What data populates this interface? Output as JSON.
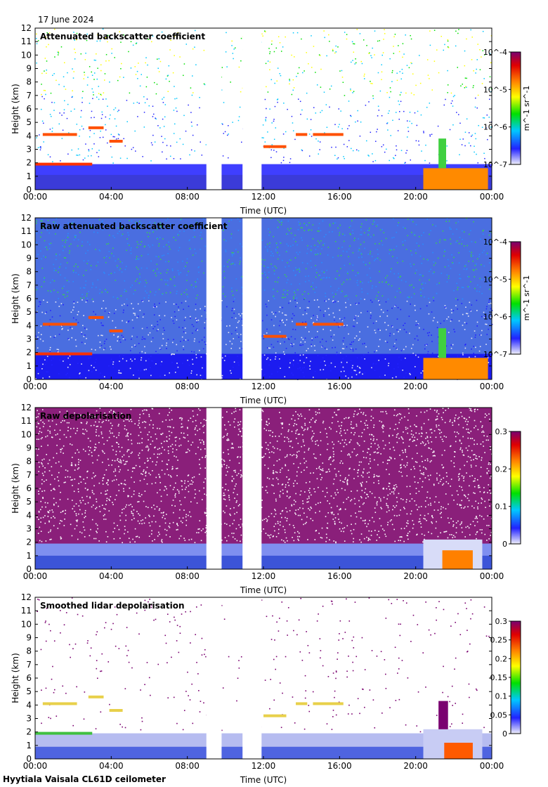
{
  "date_label": "17 June 2024",
  "footer_label": "Hyytiala Vaisala CL61D ceilometer",
  "colors": {
    "cmap": [
      "#e8e8f4",
      "#2222ff",
      "#00c8ff",
      "#00e000",
      "#ffff00",
      "#ff8000",
      "#e00000",
      "#7a0070"
    ],
    "gap": "#ffffff",
    "frame": "#000000"
  },
  "chart_data": [
    {
      "type": "heatmap",
      "title": "Attenuated backscatter coefficient",
      "xlabel": "Time (UTC)",
      "ylabel": "Height (km)",
      "xticks": [
        "00:00",
        "04:00",
        "08:00",
        "12:00",
        "16:00",
        "20:00",
        "00:00"
      ],
      "yticks": [
        "0",
        "1",
        "2",
        "3",
        "4",
        "5",
        "6",
        "7",
        "8",
        "9",
        "10",
        "11",
        "12"
      ],
      "ylim": [
        0,
        12
      ],
      "xlim_hours": [
        0,
        24
      ],
      "data_gaps_hours": [
        [
          9.0,
          9.8
        ],
        [
          10.9,
          11.9
        ]
      ],
      "colorbar": {
        "scale": "log",
        "ticks": [
          "10^-7",
          "10^-6",
          "10^-5",
          "10^-4"
        ],
        "label": "m^-1 sr^-1"
      },
      "features": {
        "boundary_layer_km": 1.9,
        "cloud_layers_km": [
          4.1,
          4.6,
          3.6,
          3.2
        ],
        "precip_hours": [
          20.5,
          23.5
        ]
      }
    },
    {
      "type": "heatmap",
      "title": "Raw attenuated backscatter coefficient",
      "xlabel": "Time (UTC)",
      "ylabel": "Height (km)",
      "xticks": [
        "00:00",
        "04:00",
        "08:00",
        "12:00",
        "16:00",
        "20:00",
        "00:00"
      ],
      "yticks": [
        "0",
        "1",
        "2",
        "3",
        "4",
        "5",
        "6",
        "7",
        "8",
        "9",
        "10",
        "11",
        "12"
      ],
      "ylim": [
        0,
        12
      ],
      "xlim_hours": [
        0,
        24
      ],
      "data_gaps_hours": [
        [
          9.0,
          9.8
        ],
        [
          10.9,
          11.9
        ]
      ],
      "colorbar": {
        "scale": "log",
        "ticks": [
          "10^-7",
          "10^-6",
          "10^-5",
          "10^-4"
        ],
        "label": "m^-1 sr^-1"
      }
    },
    {
      "type": "heatmap",
      "title": "Raw depolarisation",
      "xlabel": "Time (UTC)",
      "ylabel": "Height (km)",
      "xticks": [
        "00:00",
        "04:00",
        "08:00",
        "12:00",
        "16:00",
        "20:00",
        "00:00"
      ],
      "yticks": [
        "0",
        "1",
        "2",
        "3",
        "4",
        "5",
        "6",
        "7",
        "8",
        "9",
        "10",
        "11",
        "12"
      ],
      "ylim": [
        0,
        12
      ],
      "xlim_hours": [
        0,
        24
      ],
      "data_gaps_hours": [
        [
          9.0,
          9.8
        ],
        [
          10.9,
          11.9
        ]
      ],
      "colorbar": {
        "scale": "linear",
        "range": [
          0,
          0.3
        ],
        "ticks": [
          "0",
          "0.1",
          "0.2",
          "0.3"
        ],
        "label": ""
      }
    },
    {
      "type": "heatmap",
      "title": "Smoothed lidar depolarisation",
      "xlabel": "Time (UTC)",
      "ylabel": "Height (km)",
      "xticks": [
        "00:00",
        "04:00",
        "08:00",
        "12:00",
        "16:00",
        "20:00",
        "00:00"
      ],
      "yticks": [
        "0",
        "1",
        "2",
        "3",
        "4",
        "5",
        "6",
        "7",
        "8",
        "9",
        "10",
        "11",
        "12"
      ],
      "ylim": [
        0,
        12
      ],
      "xlim_hours": [
        0,
        24
      ],
      "data_gaps_hours": [
        [
          9.0,
          9.8
        ],
        [
          10.9,
          11.9
        ]
      ],
      "colorbar": {
        "scale": "linear",
        "range": [
          0,
          0.3
        ],
        "ticks": [
          "0",
          "0.05",
          "0.1",
          "0.15",
          "0.2",
          "0.25",
          "0.3"
        ],
        "label": ""
      }
    }
  ]
}
